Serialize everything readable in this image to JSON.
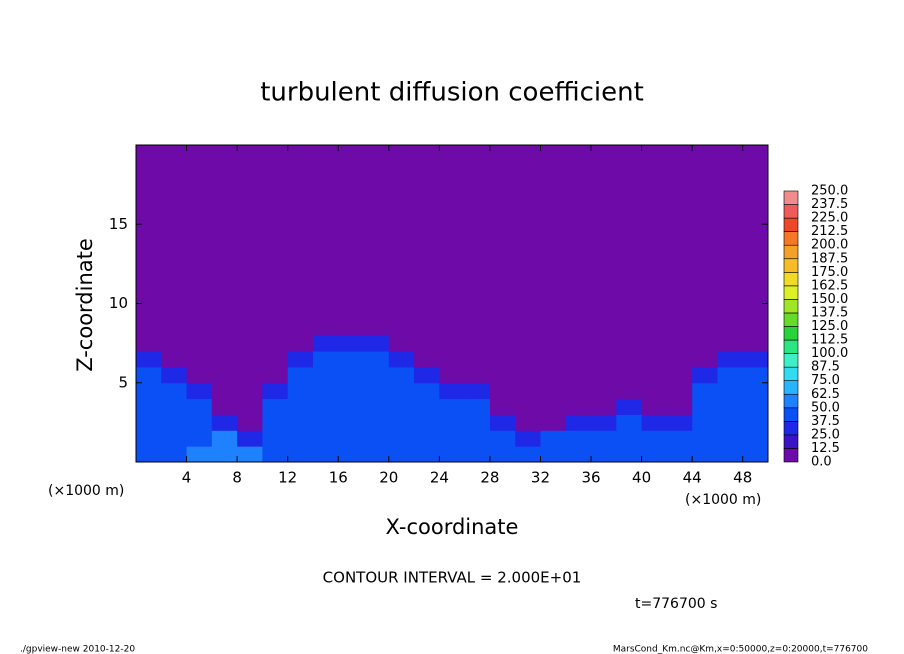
{
  "chart_data": {
    "type": "contour",
    "title": "turbulent diffusion coefficient",
    "xlabel": "X-coordinate",
    "ylabel": "Z-coordinate",
    "x_unit": "(×1000 m)",
    "contour_interval": "CONTOUR INTERVAL = 2.000E+01",
    "time": "t=776700 s",
    "footer_left": "./gpview-new   2010-12-20",
    "footer_right": "MarsCond_Km.nc@Km,x=0:50000,z=0:20000,t=776700",
    "xlim": [
      0,
      50
    ],
    "ylim": [
      0,
      20
    ],
    "xticks": [
      4,
      8,
      12,
      16,
      20,
      24,
      28,
      32,
      36,
      40,
      44,
      48
    ],
    "yticks": [
      5,
      10,
      15
    ],
    "levels": [
      {
        "value": 0,
        "label": "0.0"
      },
      {
        "value": 12.5,
        "label": "12.5"
      },
      {
        "value": 25,
        "label": "25.0"
      },
      {
        "value": 37.5,
        "label": "37.5"
      },
      {
        "value": 50,
        "label": "50.0"
      },
      {
        "value": 62.5,
        "label": "62.5"
      },
      {
        "value": 75,
        "label": "75.0"
      },
      {
        "value": 87.5,
        "label": "87.5"
      },
      {
        "value": 100,
        "label": "100.0"
      },
      {
        "value": 112.5,
        "label": "112.5"
      },
      {
        "value": 125,
        "label": "125.0"
      },
      {
        "value": 137.5,
        "label": "137.5"
      },
      {
        "value": 150,
        "label": "150.0"
      },
      {
        "value": 162.5,
        "label": "162.5"
      },
      {
        "value": 175,
        "label": "175.0"
      },
      {
        "value": 187.5,
        "label": "187.5"
      },
      {
        "value": 200,
        "label": "200.0"
      },
      {
        "value": 212.5,
        "label": "212.5"
      },
      {
        "value": 225,
        "label": "225.0"
      },
      {
        "value": 237.5,
        "label": "237.5"
      },
      {
        "value": 250,
        "label": "250.0"
      }
    ],
    "colors": [
      "#6e0aa8",
      "#3c14c8",
      "#1e28e6",
      "#0a50f5",
      "#1e82ff",
      "#28b4ff",
      "#32dcf0",
      "#3cf0c8",
      "#28e682",
      "#28d23c",
      "#64dc28",
      "#a0e628",
      "#dcf028",
      "#f0dc28",
      "#f5be28",
      "#f5a028",
      "#f57828",
      "#f04628",
      "#f05a5a",
      "#f08c8c"
    ],
    "field": {
      "x": [
        1,
        3,
        5,
        7,
        9,
        11,
        13,
        15,
        17,
        19,
        21,
        23,
        25,
        27,
        29,
        31,
        33,
        35,
        37,
        39,
        41,
        43,
        45,
        47,
        49
      ],
      "z": [
        0.5,
        1.5,
        2.5,
        3.5,
        4.5,
        5.5,
        6.5,
        7.5
      ],
      "values": [
        [
          45,
          45,
          50,
          55,
          50,
          45,
          45,
          45,
          45,
          45,
          45,
          45,
          45,
          45,
          40,
          40,
          40,
          40,
          40,
          40,
          40,
          40,
          45,
          45,
          45
        ],
        [
          40,
          40,
          45,
          55,
          25,
          40,
          45,
          45,
          40,
          40,
          40,
          40,
          40,
          40,
          40,
          25,
          40,
          40,
          40,
          40,
          40,
          40,
          40,
          40,
          40
        ],
        [
          40,
          40,
          40,
          25,
          5,
          40,
          40,
          45,
          40,
          40,
          40,
          40,
          40,
          40,
          25,
          5,
          5,
          25,
          25,
          40,
          25,
          25,
          40,
          40,
          40
        ],
        [
          40,
          40,
          40,
          5,
          5,
          40,
          40,
          40,
          40,
          40,
          40,
          40,
          40,
          40,
          5,
          5,
          5,
          5,
          5,
          25,
          5,
          5,
          40,
          40,
          40
        ],
        [
          40,
          40,
          25,
          5,
          5,
          25,
          40,
          40,
          40,
          40,
          40,
          40,
          25,
          25,
          5,
          5,
          5,
          5,
          5,
          5,
          5,
          5,
          40,
          40,
          40
        ],
        [
          40,
          25,
          5,
          5,
          5,
          5,
          40,
          40,
          40,
          40,
          40,
          25,
          5,
          5,
          5,
          5,
          5,
          5,
          5,
          5,
          5,
          5,
          25,
          40,
          40
        ],
        [
          25,
          5,
          5,
          5,
          5,
          5,
          25,
          40,
          40,
          40,
          25,
          5,
          5,
          5,
          5,
          5,
          5,
          5,
          5,
          5,
          5,
          5,
          5,
          25,
          25
        ],
        [
          5,
          5,
          5,
          5,
          5,
          5,
          5,
          25,
          25,
          25,
          5,
          5,
          5,
          5,
          5,
          5,
          5,
          5,
          5,
          5,
          5,
          5,
          5,
          5,
          5
        ]
      ]
    }
  }
}
